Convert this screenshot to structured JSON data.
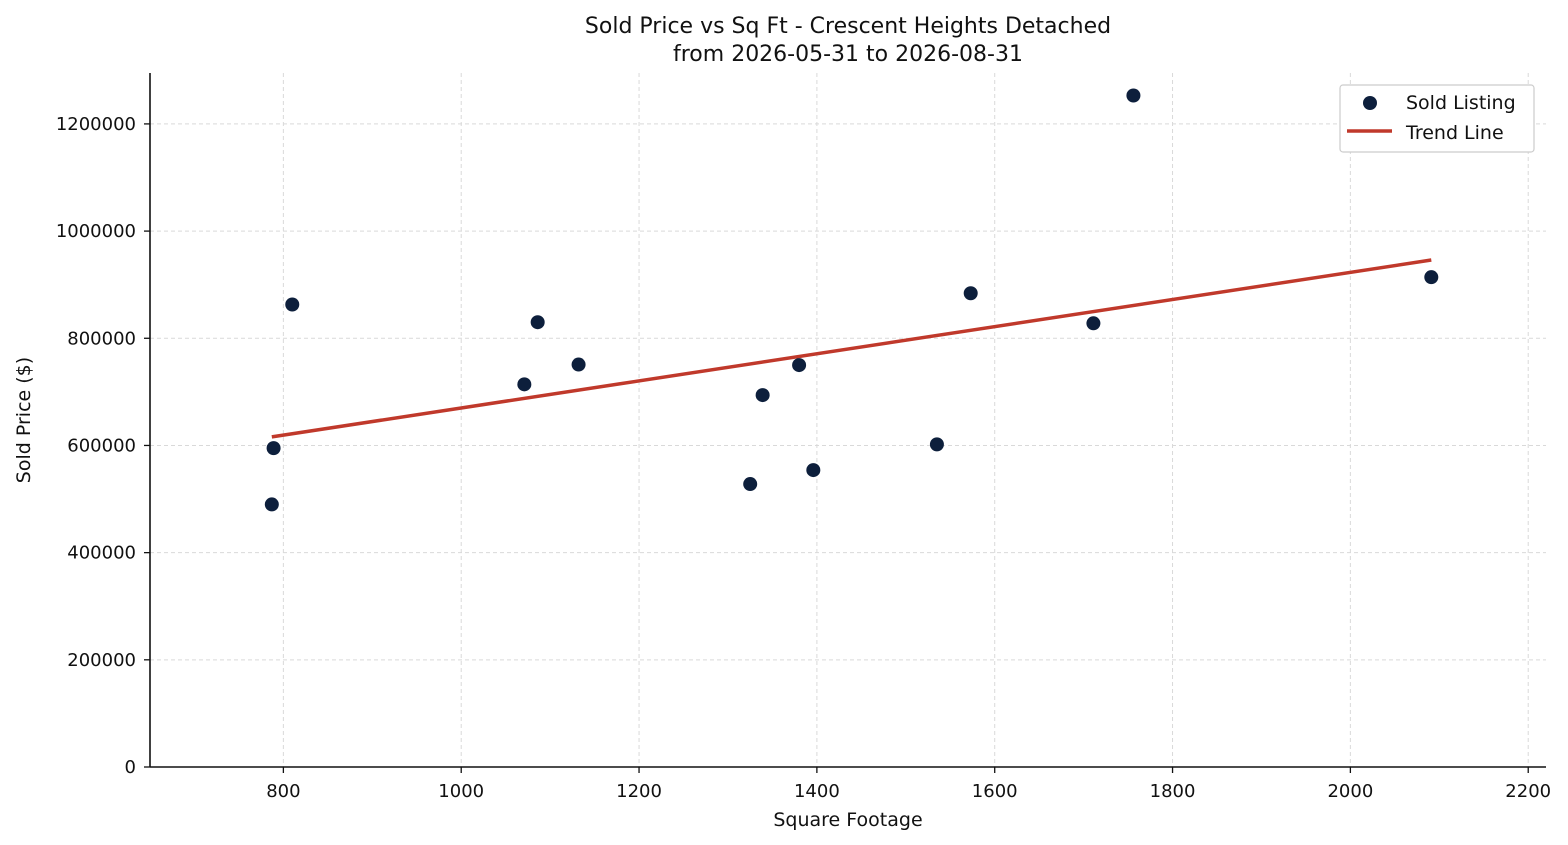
{
  "chart_data": {
    "type": "scatter",
    "title": "Sold Price vs Sq Ft - Crescent Heights Detached",
    "subtitle": "from 2026-05-31 to 2026-08-31",
    "xlabel": "Square Footage",
    "ylabel": "Sold Price ($)",
    "xlim": [
      650,
      2220
    ],
    "ylim": [
      0,
      1295000
    ],
    "xticks": [
      800,
      1000,
      1200,
      1400,
      1600,
      1800,
      2000,
      2200
    ],
    "yticks": [
      0,
      200000,
      400000,
      600000,
      800000,
      1000000,
      1200000
    ],
    "grid": true,
    "legend_position": "top-right",
    "series": [
      {
        "name": "Sold Listing",
        "kind": "scatter",
        "color": "#0d1f3c",
        "points": [
          {
            "x": 787,
            "y": 490000
          },
          {
            "x": 789,
            "y": 595000
          },
          {
            "x": 810,
            "y": 863000
          },
          {
            "x": 1071,
            "y": 714000
          },
          {
            "x": 1086,
            "y": 830000
          },
          {
            "x": 1132,
            "y": 751000
          },
          {
            "x": 1325,
            "y": 528000
          },
          {
            "x": 1339,
            "y": 694000
          },
          {
            "x": 1380,
            "y": 750000
          },
          {
            "x": 1396,
            "y": 554000
          },
          {
            "x": 1535,
            "y": 602000
          },
          {
            "x": 1573,
            "y": 884000
          },
          {
            "x": 1711,
            "y": 828000
          },
          {
            "x": 1756,
            "y": 1253000
          },
          {
            "x": 2091,
            "y": 914000
          }
        ]
      },
      {
        "name": "Trend Line",
        "kind": "line",
        "color": "#c0392b",
        "points": [
          {
            "x": 787,
            "y": 616000
          },
          {
            "x": 2091,
            "y": 946000
          }
        ]
      }
    ]
  }
}
